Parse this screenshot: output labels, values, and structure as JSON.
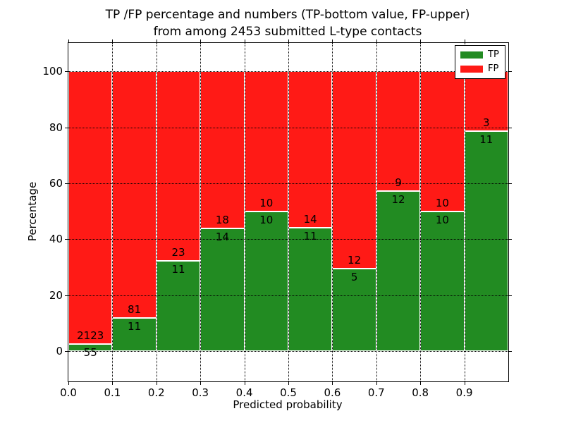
{
  "chart_data": {
    "type": "bar",
    "stacked": true,
    "orientation": "vertical",
    "title_lines": [
      "TP /FP percentage and numbers (TP-bottom value, FP-upper)",
      "from among 2453 submitted L-type contacts"
    ],
    "xlabel": "Predicted probability",
    "ylabel": "Percentage",
    "categories": [
      "0.0-0.1",
      "0.1-0.2",
      "0.2-0.3",
      "0.3-0.4",
      "0.4-0.5",
      "0.5-0.6",
      "0.6-0.7",
      "0.7-0.8",
      "0.8-0.9",
      "0.9-1.0"
    ],
    "bin_edges": [
      0.0,
      0.1,
      0.2,
      0.3,
      0.4,
      0.5,
      0.6,
      0.7,
      0.8,
      0.9,
      1.0
    ],
    "series": [
      {
        "name": "TP",
        "color": "#228B22",
        "counts": [
          55,
          11,
          11,
          14,
          10,
          11,
          5,
          12,
          10,
          11
        ],
        "percentages": [
          2.53,
          11.96,
          32.35,
          43.75,
          50.0,
          44.0,
          29.41,
          57.14,
          50.0,
          78.57
        ]
      },
      {
        "name": "FP",
        "color": "#FF1A16",
        "counts": [
          2123,
          81,
          23,
          18,
          10,
          14,
          12,
          9,
          10,
          3
        ],
        "percentages": [
          97.47,
          88.04,
          67.65,
          56.25,
          50.0,
          56.0,
          70.59,
          42.86,
          50.0,
          21.43
        ]
      }
    ],
    "x_ticks": [
      0.0,
      0.1,
      0.2,
      0.3,
      0.4,
      0.5,
      0.6,
      0.7,
      0.8,
      0.9
    ],
    "x_tick_labels": [
      "0.0",
      "0.1",
      "0.2",
      "0.3",
      "0.4",
      "0.5",
      "0.6",
      "0.7",
      "0.8",
      "0.9"
    ],
    "y_ticks": [
      0,
      20,
      40,
      60,
      80,
      100
    ],
    "y_tick_labels": [
      "0",
      "20",
      "40",
      "60",
      "80",
      "100"
    ],
    "xlim": [
      0.0,
      1.0
    ],
    "ylim": [
      -10.8,
      110.1
    ],
    "grid": {
      "style": "dotted",
      "color": "#000000"
    },
    "bar_edge_color": "#FFFFFF",
    "background": "#FFFFFF",
    "legend": {
      "position": "upper right",
      "entries": [
        {
          "label": "TP",
          "color": "#228B22"
        },
        {
          "label": "FP",
          "color": "#FF1A16"
        }
      ]
    }
  }
}
